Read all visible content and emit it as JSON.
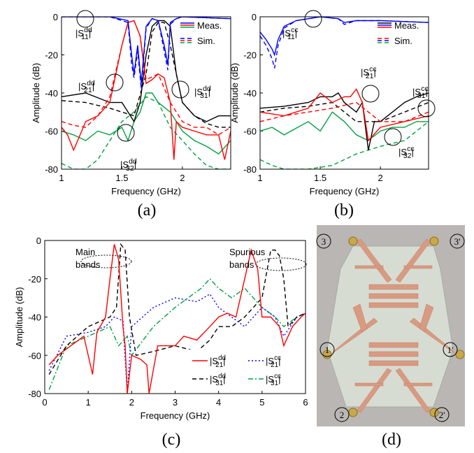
{
  "chart_data": [
    {
      "type": "line",
      "caption": "(a)",
      "xlabel": "Frequency (GHz)",
      "ylabel": "Amplitude (dB)",
      "xlim": [
        1,
        2.4
      ],
      "ylim": [
        -80,
        0
      ],
      "xticks": [
        1,
        1.5,
        2
      ],
      "yticks": [
        0,
        -20,
        -40,
        -60,
        -80
      ],
      "legend": [
        {
          "label": "Meas.",
          "dash": "solid",
          "colors": [
            "#0000ff",
            "#ff0000",
            "#00a040"
          ]
        },
        {
          "label": "Sim.",
          "dash": "dashed",
          "colors": [
            "#0000ff",
            "#ff0000",
            "#00a040"
          ]
        }
      ],
      "annotations": [
        {
          "text": "|S",
          "sup": "dd",
          "sub": "11",
          "close": "|"
        },
        {
          "text": "|S",
          "sup": "dd",
          "sub": "21",
          "close": "|"
        },
        {
          "text": "|S",
          "sup": "dd",
          "sub": "31",
          "close": "|"
        },
        {
          "text": "|S",
          "sup": "dd",
          "sub": "32",
          "close": "|"
        }
      ],
      "series": [
        {
          "color": "#00a040",
          "dash": "dashed",
          "x": [
            1,
            1.1,
            1.2,
            1.3,
            1.4,
            1.5,
            1.6,
            1.7,
            1.8,
            1.9,
            2.0,
            2.1,
            2.2,
            2.3,
            2.4
          ],
          "values": [
            -77,
            -80,
            -80,
            -75,
            -65,
            -55,
            -50,
            -42,
            -45,
            -58,
            -65,
            -72,
            -78,
            -80,
            -80
          ]
        },
        {
          "color": "#00a040",
          "dash": "solid",
          "x": [
            1,
            1.1,
            1.2,
            1.3,
            1.4,
            1.5,
            1.55,
            1.6,
            1.65,
            1.7,
            1.75,
            1.8,
            1.9,
            2.0,
            2.1,
            2.2,
            2.3,
            2.4
          ],
          "values": [
            -60,
            -62,
            -65,
            -60,
            -62,
            -58,
            -65,
            -55,
            -50,
            -40,
            -40,
            -45,
            -50,
            -60,
            -65,
            -68,
            -72,
            -65
          ]
        },
        {
          "color": "#000000",
          "dash": "dashed",
          "x": [
            1,
            1.2,
            1.4,
            1.5,
            1.6,
            1.7,
            1.75,
            1.8,
            1.85,
            1.9,
            2.0,
            2.1,
            2.2,
            2.3,
            2.4
          ],
          "values": [
            -44,
            -45,
            -48,
            -50,
            -52,
            -30,
            -8,
            -3,
            -3,
            -15,
            -45,
            -52,
            -56,
            -58,
            -58
          ]
        },
        {
          "color": "#000000",
          "dash": "solid",
          "x": [
            1,
            1.2,
            1.4,
            1.5,
            1.55,
            1.6,
            1.65,
            1.7,
            1.75,
            1.8,
            1.85,
            1.9,
            1.95,
            2.0,
            2.1,
            2.2,
            2.3,
            2.4
          ],
          "values": [
            -42,
            -40,
            -45,
            -45,
            -50,
            -55,
            -45,
            -20,
            -5,
            -2,
            -2,
            -5,
            -30,
            -45,
            -52,
            -55,
            -52,
            -52
          ]
        },
        {
          "color": "#ff0000",
          "dash": "dashed",
          "x": [
            1,
            1.1,
            1.2,
            1.3,
            1.4,
            1.5,
            1.55,
            1.6,
            1.65,
            1.7,
            1.8,
            1.9,
            2.0,
            2.1,
            2.2,
            2.3,
            2.4
          ],
          "values": [
            -55,
            -57,
            -58,
            -52,
            -42,
            -15,
            -3,
            -2,
            -10,
            -33,
            -30,
            -45,
            -55,
            -58,
            -58,
            -62,
            -58
          ]
        },
        {
          "color": "#ff0000",
          "dash": "solid",
          "x": [
            1,
            1.05,
            1.1,
            1.2,
            1.3,
            1.4,
            1.5,
            1.55,
            1.6,
            1.65,
            1.7,
            1.75,
            1.8,
            1.85,
            1.9,
            1.93,
            1.95,
            2.0,
            2.1,
            2.2,
            2.3,
            2.35,
            2.4
          ],
          "values": [
            -58,
            -62,
            -70,
            -55,
            -52,
            -45,
            -15,
            -3,
            -2,
            -10,
            -35,
            -33,
            -30,
            -32,
            -45,
            -75,
            -55,
            -58,
            -60,
            -62,
            -62,
            -75,
            -60
          ]
        },
        {
          "color": "#0000ff",
          "dash": "dashed",
          "x": [
            1,
            1.4,
            1.55,
            1.58,
            1.6,
            1.63,
            1.66,
            1.7,
            1.75,
            1.8,
            1.85,
            1.88,
            1.9,
            1.95,
            2.0,
            2.4
          ],
          "values": [
            0,
            0,
            -3,
            -25,
            -32,
            -18,
            -38,
            -6,
            -1,
            -2,
            -18,
            -28,
            -4,
            -1,
            0,
            -1
          ]
        },
        {
          "color": "#0000ff",
          "dash": "solid",
          "x": [
            1,
            1.4,
            1.55,
            1.58,
            1.6,
            1.63,
            1.66,
            1.7,
            1.75,
            1.8,
            1.85,
            1.88,
            1.9,
            1.95,
            2.0,
            2.4
          ],
          "values": [
            0,
            0,
            -2,
            -20,
            -30,
            -15,
            -35,
            -5,
            -1,
            -2,
            -15,
            -25,
            -3,
            -1,
            0,
            -1
          ]
        }
      ]
    },
    {
      "type": "line",
      "caption": "(b)",
      "xlabel": "Frequency (GHz)",
      "ylabel": "Amplitude (dB)",
      "xlim": [
        1,
        2.4
      ],
      "ylim": [
        -80,
        0
      ],
      "xticks": [
        1,
        1.5,
        2
      ],
      "yticks": [
        0,
        -20,
        -40,
        -60,
        -80
      ],
      "legend": [
        {
          "label": "Meas.",
          "dash": "solid",
          "colors": [
            "#000000",
            "#0000ff",
            "#ff0000"
          ]
        },
        {
          "label": "Sim.",
          "dash": "dashed",
          "colors": [
            "#ff0000",
            "#0000ff",
            "#00a040"
          ]
        }
      ],
      "annotations": [
        {
          "text": "|S",
          "sup": "cc",
          "sub": "11",
          "close": "|"
        },
        {
          "text": "|S",
          "sup": "cc",
          "sub": "21",
          "close": "|"
        },
        {
          "text": "|S",
          "sup": "cc",
          "sub": "31",
          "close": "|"
        },
        {
          "text": "|S",
          "sup": "cc",
          "sub": "32",
          "close": "|"
        }
      ],
      "series": [
        {
          "color": "#00a040",
          "dash": "dashed",
          "x": [
            1,
            1.1,
            1.2,
            1.4,
            1.6,
            1.8,
            2.0,
            2.2,
            2.4
          ],
          "values": [
            -75,
            -78,
            -80,
            -80,
            -78,
            -72,
            -68,
            -65,
            -55
          ]
        },
        {
          "color": "#00a040",
          "dash": "solid",
          "x": [
            1,
            1.1,
            1.2,
            1.4,
            1.5,
            1.6,
            1.7,
            1.8,
            1.9,
            2.0,
            2.1,
            2.2,
            2.3,
            2.4
          ],
          "values": [
            -60,
            -58,
            -62,
            -55,
            -60,
            -50,
            -55,
            -62,
            -65,
            -60,
            -58,
            -58,
            -55,
            -55
          ]
        },
        {
          "color": "#000000",
          "dash": "dashed",
          "x": [
            1,
            1.2,
            1.4,
            1.6,
            1.8,
            2.0,
            2.2,
            2.4
          ],
          "values": [
            -50,
            -48,
            -47,
            -45,
            -55,
            -55,
            -50,
            -45
          ]
        },
        {
          "color": "#000000",
          "dash": "solid",
          "x": [
            1,
            1.2,
            1.4,
            1.5,
            1.6,
            1.65,
            1.7,
            1.8,
            1.85,
            1.9,
            1.95,
            2.0,
            2.2,
            2.3,
            2.4
          ],
          "values": [
            -48,
            -47,
            -45,
            -42,
            -42,
            -40,
            -45,
            -50,
            -45,
            -70,
            -55,
            -55,
            -45,
            -42,
            -40
          ]
        },
        {
          "color": "#ff0000",
          "dash": "dashed",
          "x": [
            1,
            1.2,
            1.4,
            1.6,
            1.8,
            2.0,
            2.2,
            2.4
          ],
          "values": [
            -55,
            -52,
            -50,
            -48,
            -45,
            -55,
            -55,
            -50
          ]
        },
        {
          "color": "#ff0000",
          "dash": "solid",
          "x": [
            1,
            1.2,
            1.4,
            1.5,
            1.6,
            1.7,
            1.75,
            1.8,
            1.85,
            1.9,
            2.0,
            2.2,
            2.4
          ],
          "values": [
            -50,
            -52,
            -48,
            -40,
            -45,
            -42,
            -42,
            -38,
            -45,
            -65,
            -58,
            -55,
            -52
          ]
        },
        {
          "color": "#0000ff",
          "dash": "dashed",
          "x": [
            1,
            1.05,
            1.1,
            1.12,
            1.15,
            1.2,
            1.3,
            1.5,
            1.65,
            1.7,
            1.8,
            2.0,
            2.4
          ],
          "values": [
            -10,
            -15,
            -22,
            -27,
            -15,
            -6,
            -2,
            0,
            -1,
            -4,
            -2,
            -2,
            -3
          ]
        },
        {
          "color": "#0000ff",
          "dash": "solid",
          "x": [
            1,
            1.05,
            1.1,
            1.12,
            1.15,
            1.2,
            1.3,
            1.5,
            1.65,
            1.7,
            1.8,
            2.0,
            2.4
          ],
          "values": [
            -8,
            -12,
            -17,
            -20,
            -12,
            -5,
            -2,
            0,
            -1,
            -3,
            -2,
            -2,
            -3
          ]
        }
      ]
    },
    {
      "type": "line",
      "caption": "(c)",
      "xlabel": "Frequency (GHz)",
      "ylabel": "Amplitude (dB)",
      "xlim": [
        0,
        6
      ],
      "ylim": [
        -80,
        0
      ],
      "xticks": [
        0,
        1,
        2,
        3,
        4,
        5,
        6
      ],
      "yticks": [
        0,
        -20,
        -40,
        -60,
        -80
      ],
      "notes": [
        [
          "Main",
          "bands"
        ],
        [
          "Spurious",
          "bands"
        ]
      ],
      "series": [
        {
          "name": {
            "text": "|S",
            "sup": "cc",
            "sub": "31",
            "close": "|"
          },
          "color": "#00a040",
          "dash": "dashdot",
          "x": [
            0.1,
            0.5,
            1.0,
            1.5,
            1.7,
            1.9,
            2.0,
            2.5,
            3.0,
            3.3,
            3.6,
            3.8,
            4.0,
            4.3,
            4.6,
            5.0,
            5.3,
            5.5,
            5.8,
            6.0
          ],
          "values": [
            -78,
            -55,
            -50,
            -45,
            -55,
            -50,
            -60,
            -45,
            -35,
            -30,
            -25,
            -20,
            -25,
            -30,
            -25,
            -35,
            -40,
            -45,
            -40,
            -38
          ]
        },
        {
          "name": {
            "text": "|S",
            "sup": "cc",
            "sub": "21",
            "close": "|"
          },
          "color": "#0000ff",
          "dash": "dotted",
          "x": [
            0.1,
            0.5,
            1.0,
            1.4,
            1.6,
            1.8,
            1.9,
            2.0,
            2.5,
            3.0,
            3.5,
            3.8,
            4.0,
            4.3,
            4.6,
            5.0,
            5.3,
            5.5,
            5.8,
            6.0
          ],
          "values": [
            -68,
            -50,
            -48,
            -45,
            -40,
            -42,
            -80,
            -45,
            -35,
            -30,
            -32,
            -28,
            -35,
            -40,
            -45,
            -35,
            -40,
            -50,
            -40,
            -38
          ]
        },
        {
          "name": {
            "text": "|S",
            "sup": "dd",
            "sub": "31",
            "close": "|"
          },
          "color": "#000000",
          "dash": "dashed",
          "x": [
            0.1,
            0.5,
            1.0,
            1.5,
            1.65,
            1.75,
            1.85,
            1.95,
            2.1,
            2.5,
            3.0,
            3.5,
            3.8,
            4.0,
            4.3,
            4.6,
            4.8,
            5.0,
            5.2,
            5.3,
            5.4,
            5.5,
            5.6,
            5.8,
            6.0
          ],
          "values": [
            -70,
            -55,
            -45,
            -40,
            -35,
            -2,
            -5,
            -40,
            -60,
            -58,
            -55,
            -58,
            -52,
            -45,
            -45,
            -40,
            -35,
            -30,
            -5,
            -5,
            -8,
            -20,
            -45,
            -40,
            -38
          ]
        },
        {
          "name": {
            "text": "|S",
            "sup": "dd",
            "sub": "21",
            "close": "|"
          },
          "color": "#ff0000",
          "dash": "solid",
          "x": [
            0.1,
            0.3,
            0.6,
            0.9,
            1.05,
            1.1,
            1.2,
            1.4,
            1.5,
            1.6,
            1.7,
            1.8,
            1.85,
            1.9,
            2.0,
            2.2,
            2.35,
            2.4,
            2.6,
            3.0,
            3.2,
            3.5,
            3.8,
            4.0,
            4.2,
            4.4,
            4.6,
            4.75,
            4.9,
            5.0,
            5.2,
            5.4,
            5.5,
            5.7,
            5.9,
            6.0
          ],
          "values": [
            -65,
            -60,
            -55,
            -50,
            -65,
            -70,
            -48,
            -40,
            -20,
            -2,
            -10,
            -45,
            -55,
            -80,
            -60,
            -62,
            -65,
            -80,
            -55,
            -55,
            -50,
            -52,
            -45,
            -40,
            -38,
            -40,
            -20,
            -5,
            -15,
            -40,
            -40,
            -45,
            -55,
            -45,
            -40,
            -38
          ]
        }
      ]
    }
  ],
  "photo": {
    "caption": "(d)",
    "ports": [
      "3",
      "3'",
      "1",
      "1'",
      "2",
      "2'"
    ]
  }
}
